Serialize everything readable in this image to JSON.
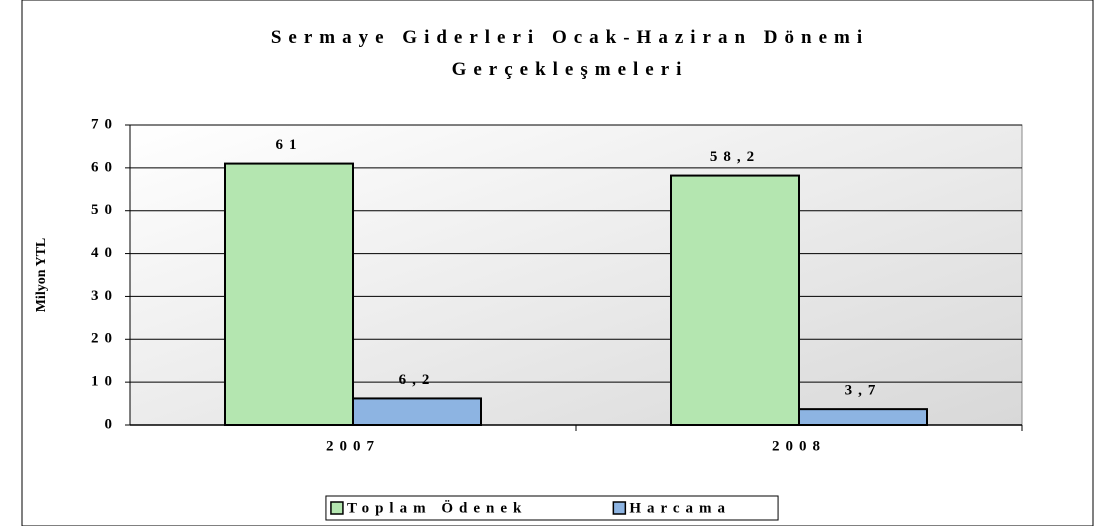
{
  "chart_data": {
    "type": "bar",
    "title": "Sermaye Giderleri Ocak-Haziran Dönemi Gerçekleşmeleri",
    "y_label": "Milyon YTL",
    "categories": [
      "2007",
      "2008"
    ],
    "series": [
      {
        "name": "Toplam Ödenek",
        "color": "#b4e6b0",
        "values": [
          61,
          58.2
        ],
        "value_labels": [
          "61",
          "58,2"
        ]
      },
      {
        "name": "Harcama",
        "color": "#8db4e2",
        "values": [
          6.2,
          3.7
        ],
        "value_labels": [
          "6,2",
          "3,7"
        ]
      }
    ],
    "ylim": [
      0,
      70
    ],
    "yticks": [
      0,
      10,
      20,
      30,
      40,
      50,
      60,
      70
    ],
    "grid": true,
    "legend": "bottom"
  }
}
